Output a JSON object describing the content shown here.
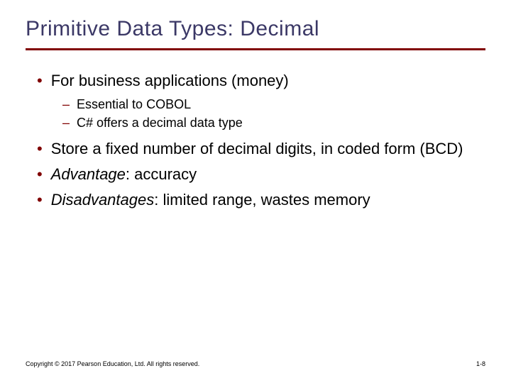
{
  "title": "Primitive Data Types: Decimal",
  "colors": {
    "title_color": "#3b3866",
    "rule_color": "#800000",
    "bullet_marker_color": "#800000",
    "text_color": "#000000",
    "background": "#ffffff"
  },
  "typography": {
    "title_fontsize": 30,
    "l1_fontsize": 22,
    "l2_fontsize": 18,
    "footer_fontsize": 9,
    "font_family": "Verdana"
  },
  "bullets": [
    {
      "text": "For business applications (money)",
      "sub": [
        "Essential to COBOL",
        "C# offers a decimal data type"
      ]
    },
    {
      "text": "Store a fixed number of decimal digits, in coded form (BCD)"
    },
    {
      "italic_prefix": "Advantage",
      "rest": ": accuracy"
    },
    {
      "italic_prefix": "Disadvantages",
      "rest": ": limited range, wastes memory"
    }
  ],
  "footer": {
    "copyright": "Copyright © 2017 Pearson Education, Ltd. All rights reserved.",
    "page": "1-8"
  }
}
